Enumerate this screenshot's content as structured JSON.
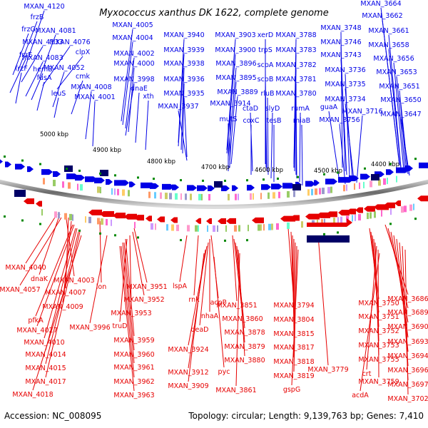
{
  "title": "Myxococcus xanthus DK 1622, complete genome",
  "accession": "Accession: NC_008095",
  "summary": "Topology: circular; Length: 9,139,763 bp; Genes: 7,410",
  "colors": {
    "forward": "#0000e6",
    "reverse": "#e60000",
    "backbone": "#888888",
    "tick_marker": "#008800"
  },
  "ticks": [
    "5000 kbp",
    "4900 kbp",
    "4800 kbp",
    "4700 kbp",
    "4600 kbp",
    "4500 kbp",
    "4400 kbp"
  ],
  "top_labels": [
    "MXAN_4120",
    "frzB",
    "frzG",
    "MXAN_4081",
    "MXAN_4133",
    "MXAN_4076",
    "frzE",
    "clpX",
    "MXAN_4083",
    "hemB",
    "frzF",
    "MXAN_4052",
    "fusA",
    "cmk",
    "leuS",
    "MXAN_4005",
    "MXAN_4004",
    "MXAN_4002",
    "MXAN_4000",
    "MXAN_3998",
    "MXAN_4008",
    "dnaE",
    "MXAN_4001",
    "xth",
    "MXAN_3940",
    "MXAN_3939",
    "MXAN_3938",
    "MXAN_3936",
    "MXAN_3935",
    "MXAN_3937",
    "MXAN_3903",
    "MXAN_3900",
    "MXAN_3896",
    "MXAN_3895",
    "MXAN_3889",
    "MXAN_3914",
    "mutS",
    "ctaD",
    "coxC",
    "xerD",
    "trpS",
    "scpA",
    "scpB",
    "rluB",
    "slyD",
    "tesB",
    "MXAN_3788",
    "MXAN_3783",
    "MXAN_3782",
    "MXAN_3781",
    "MXAN_3780",
    "rumA",
    "miaB",
    "MXAN_3748",
    "MXAN_3746",
    "MXAN_3743",
    "MXAN_3736",
    "MXAN_3735",
    "MXAN_3734",
    "guaA",
    "MXAN_3716",
    "MXAN_3756",
    "MXAN_3664",
    "MXAN_3662",
    "MXAN_3661",
    "MXAN_3658",
    "MXAN_3656",
    "MXAN_3653",
    "MXAN_3651",
    "MXAN_3650",
    "MXAN_3647"
  ],
  "bottom_labels": [
    "MXAN_4040",
    "dnaK",
    "MXAN_4003",
    "MXAN_4057",
    "MXAN_4007",
    "MXAN_4009",
    "pfkA",
    "MXAN_4027",
    "MXAN_4010",
    "MXAN_4014",
    "MXAN_4015",
    "MXAN_4017",
    "MXAN_4018",
    "lon",
    "MXAN_3996",
    "MXAN_3951",
    "MXAN_3952",
    "MXAN_3953",
    "truD",
    "MXAN_3959",
    "MXAN_3960",
    "MXAN_3961",
    "MXAN_3962",
    "MXAN_3963",
    "lspA",
    "rnk",
    "acpP",
    "nhaA",
    "deaD",
    "MXAN_3924",
    "MXAN_3912",
    "MXAN_3909",
    "pyc",
    "MXAN_3851",
    "MXAN_3860",
    "MXAN_3878",
    "MXAN_3879",
    "MXAN_3880",
    "MXAN_3861",
    "MXAN_3794",
    "MXAN_3804",
    "MXAN_3815",
    "MXAN_3817",
    "MXAN_3818",
    "MXAN_3819",
    "gspG",
    "MXAN_3779",
    "MXAN_3750",
    "MXAN_3751",
    "MXAN_3752",
    "MXAN_3753",
    "MXAN_3755",
    "crt",
    "MXAN_3759",
    "acdA",
    "MXAN_3686",
    "MXAN_3689",
    "MXAN_3690",
    "MXAN_3693",
    "MXAN_3694",
    "MXAN_3696",
    "MXAN_3697",
    "MXAN_3702"
  ]
}
